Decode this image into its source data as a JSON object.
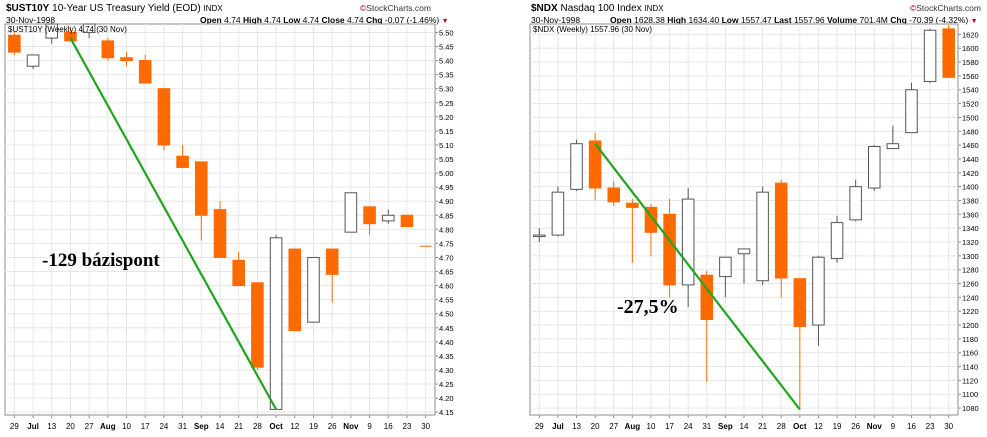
{
  "chart_data": [
    {
      "type": "candlestick",
      "symbol": "$UST10Y",
      "name": "10-Year US Treasury Yield (EOD)",
      "exchange": "INDX",
      "date": "30-Nov-1998",
      "brand": "StockCharts.com",
      "legend": "$UST10Y (Weekly) 4.74 (30 Nov)",
      "stats": [
        {
          "label": "Open",
          "value": "4.74"
        },
        {
          "label": "High",
          "value": "4.74"
        },
        {
          "label": "Low",
          "value": "4.74"
        },
        {
          "label": "Close",
          "value": "4.74"
        },
        {
          "label": "Chg",
          "value": "-0.07 (-1.46%)"
        }
      ],
      "ylim": [
        4.14,
        5.53
      ],
      "yticks": [
        "5.50",
        "5.45",
        "5.40",
        "5.35",
        "5.30",
        "5.25",
        "5.20",
        "5.15",
        "5.10",
        "5.05",
        "5.00",
        "4.95",
        "4.90",
        "4.85",
        "4.80",
        "4.75",
        "4.70",
        "4.65",
        "4.60",
        "4.55",
        "4.50",
        "4.45",
        "4.40",
        "4.35",
        "4.30",
        "4.25",
        "4.20",
        "4.15"
      ],
      "xticks": [
        {
          "label": "29",
          "bold": false
        },
        {
          "label": "Jul",
          "bold": true
        },
        {
          "label": "13",
          "bold": false
        },
        {
          "label": "20",
          "bold": false
        },
        {
          "label": "27",
          "bold": false
        },
        {
          "label": "Aug",
          "bold": true
        },
        {
          "label": "10",
          "bold": false
        },
        {
          "label": "17",
          "bold": false
        },
        {
          "label": "24",
          "bold": false
        },
        {
          "label": "31",
          "bold": false
        },
        {
          "label": "Sep",
          "bold": true
        },
        {
          "label": "14",
          "bold": false
        },
        {
          "label": "21",
          "bold": false
        },
        {
          "label": "28",
          "bold": false
        },
        {
          "label": "Oct",
          "bold": true
        },
        {
          "label": "12",
          "bold": false
        },
        {
          "label": "19",
          "bold": false
        },
        {
          "label": "26",
          "bold": false
        },
        {
          "label": "Nov",
          "bold": true
        },
        {
          "label": "9",
          "bold": false
        },
        {
          "label": "16",
          "bold": false
        },
        {
          "label": "23",
          "bold": false
        },
        {
          "label": "30",
          "bold": false
        }
      ],
      "candles": [
        {
          "o": 5.49,
          "h": 5.5,
          "l": 5.42,
          "c": 5.43
        },
        {
          "o": 5.38,
          "h": 5.42,
          "l": 5.37,
          "c": 5.42
        },
        {
          "o": 5.48,
          "h": 5.54,
          "l": 5.46,
          "c": 5.53
        },
        {
          "o": 5.5,
          "h": 5.52,
          "l": 5.47,
          "c": 5.47
        },
        {
          "o": 5.5,
          "h": 5.53,
          "l": 5.48,
          "c": 5.53
        },
        {
          "o": 5.47,
          "h": 5.48,
          "l": 5.4,
          "c": 5.41
        },
        {
          "o": 5.41,
          "h": 5.43,
          "l": 5.38,
          "c": 5.4
        },
        {
          "o": 5.4,
          "h": 5.42,
          "l": 5.32,
          "c": 5.32
        },
        {
          "o": 5.3,
          "h": 5.3,
          "l": 5.08,
          "c": 5.1
        },
        {
          "o": 5.06,
          "h": 5.1,
          "l": 5.02,
          "c": 5.02
        },
        {
          "o": 5.04,
          "h": 5.04,
          "l": 4.76,
          "c": 4.85
        },
        {
          "o": 4.87,
          "h": 4.9,
          "l": 4.7,
          "c": 4.7
        },
        {
          "o": 4.69,
          "h": 4.72,
          "l": 4.6,
          "c": 4.6
        },
        {
          "o": 4.61,
          "h": 4.61,
          "l": 4.3,
          "c": 4.31
        },
        {
          "o": 4.16,
          "h": 4.78,
          "l": 4.16,
          "c": 4.77
        },
        {
          "o": 4.73,
          "h": 4.73,
          "l": 4.44,
          "c": 4.44
        },
        {
          "o": 4.47,
          "h": 4.7,
          "l": 4.47,
          "c": 4.7
        },
        {
          "o": 4.73,
          "h": 4.73,
          "l": 4.54,
          "c": 4.64
        },
        {
          "o": 4.79,
          "h": 4.93,
          "l": 4.79,
          "c": 4.93
        },
        {
          "o": 4.88,
          "h": 4.88,
          "l": 4.78,
          "c": 4.82
        },
        {
          "o": 4.83,
          "h": 4.87,
          "l": 4.82,
          "c": 4.85
        },
        {
          "o": 4.85,
          "h": 4.85,
          "l": 4.81,
          "c": 4.81
        },
        {
          "o": 4.74,
          "h": 4.74,
          "l": 4.74,
          "c": 4.74
        }
      ],
      "trendline": {
        "from": {
          "index": 3,
          "value": 5.48
        },
        "to": {
          "index": 14,
          "value": 4.16
        }
      },
      "annotation": "-129 bázispont"
    },
    {
      "type": "candlestick",
      "symbol": "$NDX",
      "name": "Nasdaq 100 Index",
      "exchange": "INDX",
      "date": "30-Nov-1998",
      "brand": "StockCharts.com",
      "legend": "$NDX (Weekly) 1557.96 (30 Nov)",
      "stats": [
        {
          "label": "Open",
          "value": "1628.38"
        },
        {
          "label": "High",
          "value": "1634.40"
        },
        {
          "label": "Low",
          "value": "1557.47"
        },
        {
          "label": "Last",
          "value": "1557.96"
        },
        {
          "label": "Volume",
          "value": "701.4M"
        },
        {
          "label": "Chg",
          "value": "-70.39 (-4.32%)"
        }
      ],
      "ylim": [
        1070,
        1635
      ],
      "yticks": [
        "1620",
        "1600",
        "1580",
        "1560",
        "1540",
        "1520",
        "1500",
        "1480",
        "1460",
        "1440",
        "1420",
        "1400",
        "1380",
        "1360",
        "1340",
        "1320",
        "1300",
        "1280",
        "1260",
        "1240",
        "1220",
        "1200",
        "1180",
        "1160",
        "1140",
        "1120",
        "1100",
        "1080"
      ],
      "xticks": [
        {
          "label": "29",
          "bold": false
        },
        {
          "label": "Jul",
          "bold": true
        },
        {
          "label": "13",
          "bold": false
        },
        {
          "label": "20",
          "bold": false
        },
        {
          "label": "27",
          "bold": false
        },
        {
          "label": "Aug",
          "bold": true
        },
        {
          "label": "10",
          "bold": false
        },
        {
          "label": "17",
          "bold": false
        },
        {
          "label": "24",
          "bold": false
        },
        {
          "label": "31",
          "bold": false
        },
        {
          "label": "Sep",
          "bold": true
        },
        {
          "label": "14",
          "bold": false
        },
        {
          "label": "21",
          "bold": false
        },
        {
          "label": "28",
          "bold": false
        },
        {
          "label": "Oct",
          "bold": true
        },
        {
          "label": "12",
          "bold": false
        },
        {
          "label": "19",
          "bold": false
        },
        {
          "label": "26",
          "bold": false
        },
        {
          "label": "Nov",
          "bold": true
        },
        {
          "label": "9",
          "bold": false
        },
        {
          "label": "16",
          "bold": false
        },
        {
          "label": "23",
          "bold": false
        },
        {
          "label": "30",
          "bold": false
        }
      ],
      "candles": [
        {
          "o": 1328,
          "h": 1340,
          "l": 1320,
          "c": 1330
        },
        {
          "o": 1330,
          "h": 1400,
          "l": 1328,
          "c": 1392
        },
        {
          "o": 1396,
          "h": 1468,
          "l": 1394,
          "c": 1462
        },
        {
          "o": 1466,
          "h": 1478,
          "l": 1380,
          "c": 1398
        },
        {
          "o": 1398,
          "h": 1408,
          "l": 1372,
          "c": 1378
        },
        {
          "o": 1376,
          "h": 1382,
          "l": 1290,
          "c": 1370
        },
        {
          "o": 1370,
          "h": 1375,
          "l": 1300,
          "c": 1334
        },
        {
          "o": 1360,
          "h": 1382,
          "l": 1240,
          "c": 1258
        },
        {
          "o": 1258,
          "h": 1398,
          "l": 1226,
          "c": 1382
        },
        {
          "o": 1272,
          "h": 1278,
          "l": 1118,
          "c": 1208
        },
        {
          "o": 1270,
          "h": 1298,
          "l": 1240,
          "c": 1298
        },
        {
          "o": 1303,
          "h": 1310,
          "l": 1260,
          "c": 1310
        },
        {
          "o": 1264,
          "h": 1400,
          "l": 1258,
          "c": 1392
        },
        {
          "o": 1405,
          "h": 1410,
          "l": 1240,
          "c": 1268
        },
        {
          "o": 1267,
          "h": 1267,
          "l": 1078,
          "c": 1198
        },
        {
          "o": 1200,
          "h": 1300,
          "l": 1170,
          "c": 1298
        },
        {
          "o": 1296,
          "h": 1358,
          "l": 1290,
          "c": 1348
        },
        {
          "o": 1352,
          "h": 1410,
          "l": 1350,
          "c": 1400
        },
        {
          "o": 1398,
          "h": 1460,
          "l": 1394,
          "c": 1458
        },
        {
          "o": 1455,
          "h": 1488,
          "l": 1455,
          "c": 1462
        },
        {
          "o": 1478,
          "h": 1550,
          "l": 1478,
          "c": 1540
        },
        {
          "o": 1552,
          "h": 1628,
          "l": 1550,
          "c": 1626
        },
        {
          "o": 1628,
          "h": 1634,
          "l": 1557,
          "c": 1558
        }
      ],
      "trendline": {
        "from": {
          "index": 3,
          "value": 1462
        },
        "to": {
          "index": 14,
          "value": 1078
        }
      },
      "annotation": "-27,5%"
    }
  ]
}
